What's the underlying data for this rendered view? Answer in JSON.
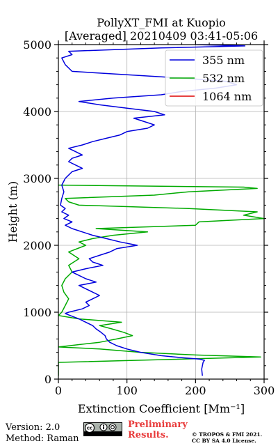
{
  "chart_data": {
    "type": "line",
    "title": "PollyXT_FMI at Kuopio",
    "subtitle": "[Averaged] 20210409 03:41-05:06",
    "xlabel": "Extinction Coefficient [Mm⁻¹]",
    "ylabel": "Height (m)",
    "xlim": [
      0,
      300
    ],
    "ylim": [
      0,
      5000
    ],
    "xticks": [
      "0",
      "100",
      "200",
      "300"
    ],
    "yticks": [
      "0",
      "1000",
      "2000",
      "3000",
      "4000",
      "5000"
    ],
    "grid": true,
    "legend_position": "top-right",
    "series": [
      {
        "name": "355 nm",
        "color": "#0000dd",
        "points": [
          [
            210,
            50
          ],
          [
            209,
            150
          ],
          [
            211,
            250
          ],
          [
            213,
            280
          ],
          [
            205,
            300
          ],
          [
            180,
            320
          ],
          [
            150,
            350
          ],
          [
            120,
            400
          ],
          [
            100,
            450
          ],
          [
            85,
            500
          ],
          [
            75,
            550
          ],
          [
            70,
            600
          ],
          [
            68,
            650
          ],
          [
            62,
            700
          ],
          [
            55,
            750
          ],
          [
            50,
            800
          ],
          [
            40,
            850
          ],
          [
            30,
            900
          ],
          [
            20,
            940
          ],
          [
            10,
            980
          ],
          [
            15,
            1000
          ],
          [
            35,
            1050
          ],
          [
            45,
            1100
          ],
          [
            40,
            1150
          ],
          [
            50,
            1200
          ],
          [
            60,
            1250
          ],
          [
            50,
            1300
          ],
          [
            40,
            1350
          ],
          [
            30,
            1400
          ],
          [
            55,
            1450
          ],
          [
            40,
            1500
          ],
          [
            30,
            1550
          ],
          [
            20,
            1600
          ],
          [
            40,
            1650
          ],
          [
            65,
            1700
          ],
          [
            50,
            1750
          ],
          [
            45,
            1800
          ],
          [
            60,
            1850
          ],
          [
            75,
            1900
          ],
          [
            85,
            1950
          ],
          [
            115,
            2000
          ],
          [
            90,
            2050
          ],
          [
            70,
            2100
          ],
          [
            50,
            2150
          ],
          [
            35,
            2200
          ],
          [
            20,
            2250
          ],
          [
            10,
            2300
          ],
          [
            20,
            2350
          ],
          [
            8,
            2400
          ],
          [
            15,
            2450
          ],
          [
            5,
            2500
          ],
          [
            10,
            2550
          ],
          [
            3,
            2600
          ],
          [
            5,
            2700
          ],
          [
            8,
            2800
          ],
          [
            5,
            2900
          ],
          [
            10,
            3000
          ],
          [
            20,
            3100
          ],
          [
            35,
            3150
          ],
          [
            25,
            3200
          ],
          [
            15,
            3250
          ],
          [
            20,
            3300
          ],
          [
            35,
            3350
          ],
          [
            25,
            3400
          ],
          [
            15,
            3450
          ],
          [
            35,
            3500
          ],
          [
            50,
            3550
          ],
          [
            70,
            3600
          ],
          [
            90,
            3650
          ],
          [
            100,
            3700
          ],
          [
            130,
            3750
          ],
          [
            140,
            3800
          ],
          [
            125,
            3850
          ],
          [
            110,
            3900
          ],
          [
            155,
            3950
          ],
          [
            140,
            4000
          ],
          [
            100,
            4050
          ],
          [
            60,
            4100
          ],
          [
            30,
            4150
          ],
          [
            80,
            4200
          ],
          [
            150,
            4250
          ],
          [
            180,
            4300
          ],
          [
            230,
            4350
          ],
          [
            260,
            4400
          ],
          [
            245,
            4450
          ],
          [
            180,
            4500
          ],
          [
            100,
            4550
          ],
          [
            20,
            4600
          ],
          [
            10,
            4700
          ],
          [
            5,
            4800
          ],
          [
            20,
            4850
          ],
          [
            15,
            4900
          ],
          [
            150,
            4950
          ],
          [
            272,
            4980
          ],
          [
            200,
            5000
          ]
        ]
      },
      {
        "name": "532 nm",
        "color": "#00aa00",
        "points": [
          [
            0,
            50
          ],
          [
            0,
            250
          ],
          [
            295,
            330
          ],
          [
            200,
            360
          ],
          [
            120,
            400
          ],
          [
            60,
            450
          ],
          [
            0,
            480
          ],
          [
            60,
            550
          ],
          [
            85,
            600
          ],
          [
            108,
            650
          ],
          [
            95,
            700
          ],
          [
            78,
            750
          ],
          [
            60,
            800
          ],
          [
            92,
            850
          ],
          [
            30,
            900
          ],
          [
            0,
            950
          ],
          [
            5,
            1000
          ],
          [
            10,
            1100
          ],
          [
            15,
            1200
          ],
          [
            8,
            1300
          ],
          [
            5,
            1400
          ],
          [
            10,
            1500
          ],
          [
            20,
            1600
          ],
          [
            15,
            1700
          ],
          [
            30,
            1800
          ],
          [
            15,
            1900
          ],
          [
            40,
            2000
          ],
          [
            30,
            2050
          ],
          [
            50,
            2100
          ],
          [
            80,
            2150
          ],
          [
            130,
            2200
          ],
          [
            55,
            2250
          ],
          [
            200,
            2300
          ],
          [
            205,
            2350
          ],
          [
            300,
            2400
          ],
          [
            270,
            2450
          ],
          [
            290,
            2500
          ],
          [
            190,
            2550
          ],
          [
            30,
            2600
          ],
          [
            15,
            2650
          ],
          [
            10,
            2700
          ],
          [
            140,
            2750
          ],
          [
            190,
            2800
          ],
          [
            290,
            2850
          ],
          [
            270,
            2870
          ],
          [
            0,
            2900
          ]
        ]
      },
      {
        "name": "1064 nm",
        "color": "#dd0000",
        "points": []
      }
    ]
  },
  "footer": {
    "version": "Version: 2.0",
    "method": "Method: Raman",
    "preliminary_line1": "Preliminary",
    "preliminary_line2": "Results.",
    "copyright_line1": "© TROPOS & FMI 2021.",
    "copyright_line2": "CC BY SA 4.0 License.",
    "license_logo": "cc-by-sa-logo"
  }
}
